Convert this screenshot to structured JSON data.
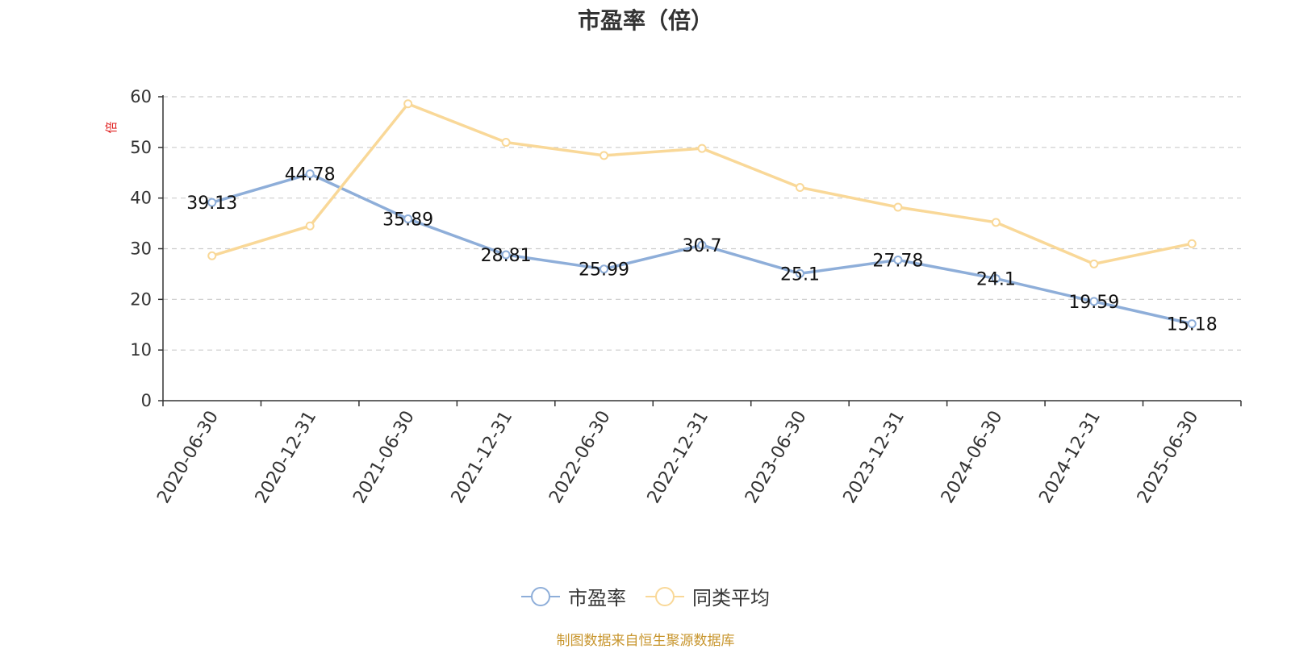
{
  "chart_data": {
    "type": "line",
    "title": "市盈率（倍）",
    "ylabel": "倍",
    "xlabel": "",
    "ylim": [
      0,
      60
    ],
    "yticks": [
      0,
      10,
      20,
      30,
      40,
      50,
      60
    ],
    "categories": [
      "2020-06-30",
      "2020-12-31",
      "2021-06-30",
      "2021-12-31",
      "2022-06-30",
      "2022-12-31",
      "2023-06-30",
      "2023-12-31",
      "2024-06-30",
      "2024-12-31",
      "2025-06-30"
    ],
    "series": [
      {
        "name": "市盈率",
        "color": "#8eaed9",
        "values": [
          39.13,
          44.78,
          35.89,
          28.81,
          25.99,
          30.7,
          25.1,
          27.78,
          24.1,
          19.59,
          15.18
        ],
        "labels": [
          "39.13",
          "44.78",
          "35.89",
          "28.81",
          "25.99",
          "30.7",
          "25.1",
          "27.78",
          "24.1",
          "19.59",
          "15.18"
        ]
      },
      {
        "name": "同类平均",
        "color": "#f9d898",
        "values": [
          28.6,
          34.5,
          58.6,
          51.0,
          48.4,
          49.8,
          42.1,
          38.2,
          35.2,
          27.0,
          31.0
        ]
      }
    ],
    "grid": true,
    "legend_position": "bottom-center"
  },
  "source_note": "制图数据来自恒生聚源数据库"
}
